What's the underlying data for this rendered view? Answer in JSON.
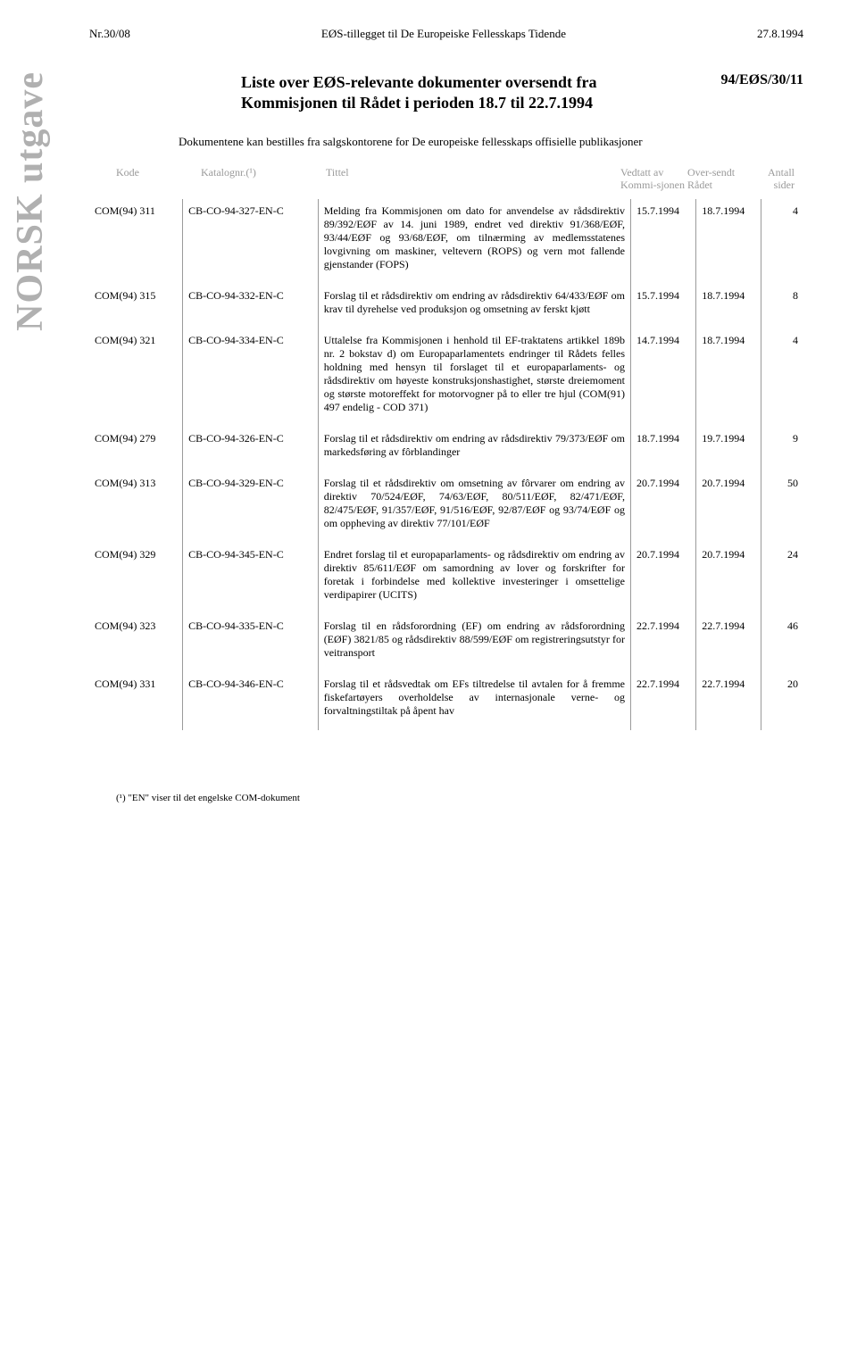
{
  "header": {
    "left": "Nr.30/08",
    "center": "EØS-tillegget til De Europeiske Fellesskaps Tidende",
    "right": "27.8.1994"
  },
  "vertical_label": "NORSK utgave",
  "title_line1": "Liste over EØS-relevante dokumenter oversendt fra",
  "title_line2": "Kommisjonen til Rådet i perioden 18.7 til 22.7.1994",
  "ref": "94/EØS/30/11",
  "intro": "Dokumentene kan bestilles fra salgskontorene for De europeiske fellesskaps offisielle publikasjoner",
  "columns": {
    "kode": "Kode",
    "katalognr": "Katalognr.(¹)",
    "tittel": "Tittel",
    "vedtatt": "Vedtatt av Kommi-sjonen",
    "oversendt": "Over-sendt Rådet",
    "antall": "Antall sider"
  },
  "rows": [
    {
      "kode": "COM(94) 311",
      "kat": "CB-CO-94-327-EN-C",
      "tittel": "Melding fra Kommisjonen om dato for anvendelse av rådsdirektiv 89/392/EØF av 14. juni 1989, endret ved direktiv 91/368/EØF, 93/44/EØF og 93/68/EØF, om tilnærming av medlemsstatenes lovgivning om maskiner, veltevern (ROPS) og vern mot fallende gjenstander (FOPS)",
      "d1": "15.7.1994",
      "d2": "18.7.1994",
      "pg": "4"
    },
    {
      "kode": "COM(94) 315",
      "kat": "CB-CO-94-332-EN-C",
      "tittel": "Forslag til et rådsdirektiv om endring av rådsdirektiv 64/433/EØF om krav til dyrehelse ved produksjon og omsetning av ferskt kjøtt",
      "d1": "15.7.1994",
      "d2": "18.7.1994",
      "pg": "8"
    },
    {
      "kode": "COM(94) 321",
      "kat": "CB-CO-94-334-EN-C",
      "tittel": "Uttalelse fra Kommisjonen i henhold til EF-traktatens artikkel 189b nr. 2 bokstav d) om Europaparlamentets endringer til Rådets felles holdning med hensyn til forslaget til et europaparlaments- og rådsdirektiv om høyeste konstruksjonshastighet, største dreiemoment og største motoreffekt for motorvogner på to eller tre hjul (COM(91) 497 endelig - COD 371)",
      "d1": "14.7.1994",
      "d2": "18.7.1994",
      "pg": "4"
    },
    {
      "kode": "COM(94) 279",
      "kat": "CB-CO-94-326-EN-C",
      "tittel": "Forslag til et rådsdirektiv om endring av rådsdirektiv 79/373/EØF om markedsføring av fôrblandinger",
      "d1": "18.7.1994",
      "d2": "19.7.1994",
      "pg": "9"
    },
    {
      "kode": "COM(94) 313",
      "kat": "CB-CO-94-329-EN-C",
      "tittel": "Forslag til et rådsdirektiv om omsetning av fôrvarer om endring av direktiv 70/524/EØF, 74/63/EØF, 80/511/EØF, 82/471/EØF, 82/475/EØF, 91/357/EØF, 91/516/EØF, 92/87/EØF og 93/74/EØF og om oppheving av direktiv 77/101/EØF",
      "d1": "20.7.1994",
      "d2": "20.7.1994",
      "pg": "50"
    },
    {
      "kode": "COM(94) 329",
      "kat": "CB-CO-94-345-EN-C",
      "tittel": "Endret forslag til et europaparlaments- og rådsdirektiv om endring av direktiv 85/611/EØF om samordning av lover og forskrifter for foretak i forbindelse med kollektive investeringer i omsettelige verdipapirer (UCITS)",
      "d1": "20.7.1994",
      "d2": "20.7.1994",
      "pg": "24"
    },
    {
      "kode": "COM(94) 323",
      "kat": "CB-CO-94-335-EN-C",
      "tittel": "Forslag til en rådsforordning (EF) om endring av rådsforordning (EØF) 3821/85 og rådsdirektiv 88/599/EØF om registreringsutstyr for veitransport",
      "d1": "22.7.1994",
      "d2": "22.7.1994",
      "pg": "46"
    },
    {
      "kode": "COM(94) 331",
      "kat": "CB-CO-94-346-EN-C",
      "tittel": "Forslag til et rådsvedtak om EFs tiltredelse til avtalen for å fremme fiskefartøyers overholdelse av internasjonale verne- og forvaltningstiltak på åpent hav",
      "d1": "22.7.1994",
      "d2": "22.7.1994",
      "pg": "20"
    }
  ],
  "footnote": "(¹) \"EN\" viser til det engelske COM-dokument"
}
